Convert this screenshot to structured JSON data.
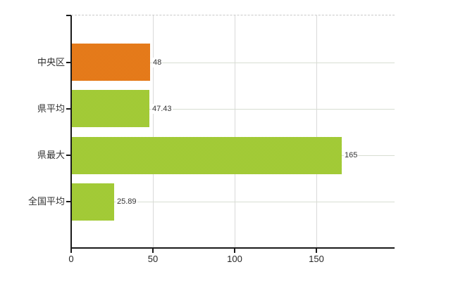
{
  "chart_data": {
    "type": "bar",
    "orientation": "horizontal",
    "title": "",
    "xlabel": "",
    "ylabel": "",
    "categories": [
      "中央区",
      "県平均",
      "県最大",
      "全国平均"
    ],
    "values": [
      48,
      47.43,
      165,
      25.89
    ],
    "value_labels": [
      "48",
      "47.43",
      "165",
      "25.89"
    ],
    "bar_colors": [
      "orange",
      "green",
      "green",
      "green"
    ],
    "x_ticks": [
      0,
      50,
      100,
      150
    ],
    "x_tick_labels": [
      "0",
      "50",
      "100",
      "150"
    ],
    "xlim": [
      0,
      197
    ],
    "grid": true,
    "legend": false,
    "palette": {
      "orange": {
        "base": "#e5791e",
        "light": "#ef8a1f",
        "dark": "#da6a15"
      },
      "green": {
        "base": "#a3cb38",
        "light": "#b5d63a",
        "dark": "#8fbe33"
      }
    },
    "colors": {
      "axis": "#1a1a1a",
      "text": "#333333",
      "tick_text": "#262626",
      "vertical_gridline": "#d9d9d9",
      "row_gridline": "#d8ded2",
      "top_border": "#c9c9c9",
      "background": "#ffffff"
    }
  }
}
